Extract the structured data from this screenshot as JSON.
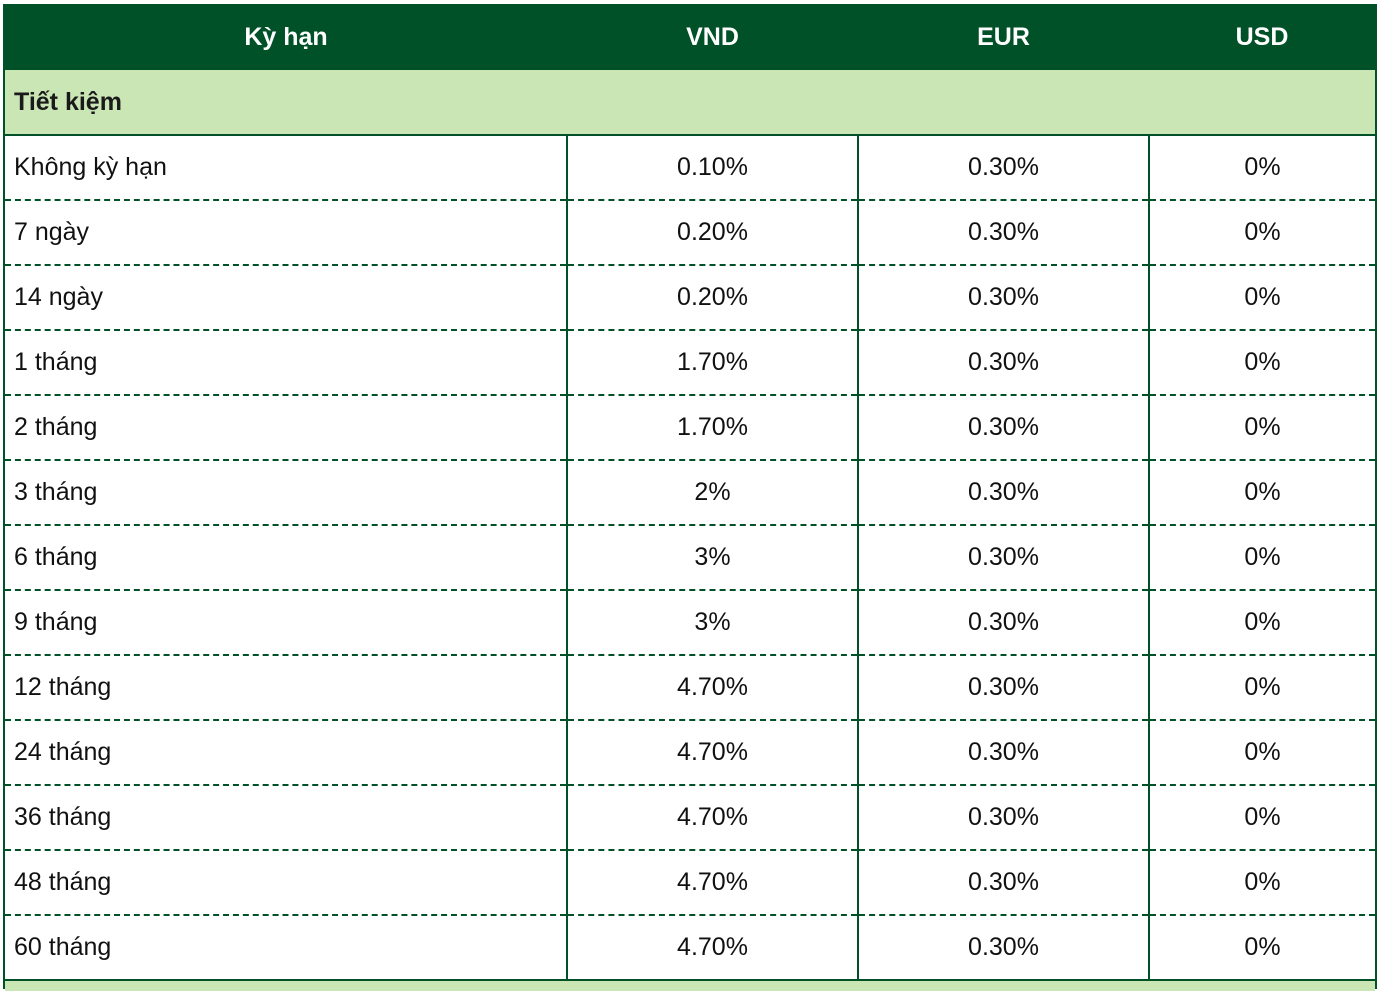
{
  "table": {
    "headers": [
      "Kỳ hạn",
      "VND",
      "EUR",
      "USD"
    ],
    "section_title": "Tiết kiệm",
    "rows": [
      {
        "term": "Không kỳ hạn",
        "vnd": "0.10%",
        "eur": "0.30%",
        "usd": "0%"
      },
      {
        "term": "7 ngày",
        "vnd": "0.20%",
        "eur": "0.30%",
        "usd": "0%"
      },
      {
        "term": "14 ngày",
        "vnd": "0.20%",
        "eur": "0.30%",
        "usd": "0%"
      },
      {
        "term": "1 tháng",
        "vnd": "1.70%",
        "eur": "0.30%",
        "usd": "0%"
      },
      {
        "term": "2 tháng",
        "vnd": "1.70%",
        "eur": "0.30%",
        "usd": "0%"
      },
      {
        "term": "3 tháng",
        "vnd": "2%",
        "eur": "0.30%",
        "usd": "0%"
      },
      {
        "term": "6 tháng",
        "vnd": "3%",
        "eur": "0.30%",
        "usd": "0%"
      },
      {
        "term": "9 tháng",
        "vnd": "3%",
        "eur": "0.30%",
        "usd": "0%"
      },
      {
        "term": "12 tháng",
        "vnd": "4.70%",
        "eur": "0.30%",
        "usd": "0%"
      },
      {
        "term": "24 tháng",
        "vnd": "4.70%",
        "eur": "0.30%",
        "usd": "0%"
      },
      {
        "term": "36 tháng",
        "vnd": "4.70%",
        "eur": "0.30%",
        "usd": "0%"
      },
      {
        "term": "48 tháng",
        "vnd": "4.70%",
        "eur": "0.30%",
        "usd": "0%"
      },
      {
        "term": "60 tháng",
        "vnd": "4.70%",
        "eur": "0.30%",
        "usd": "0%"
      }
    ]
  },
  "colors": {
    "header_bg": "#005128",
    "section_bg": "#cbe6b5",
    "border": "#005128"
  }
}
